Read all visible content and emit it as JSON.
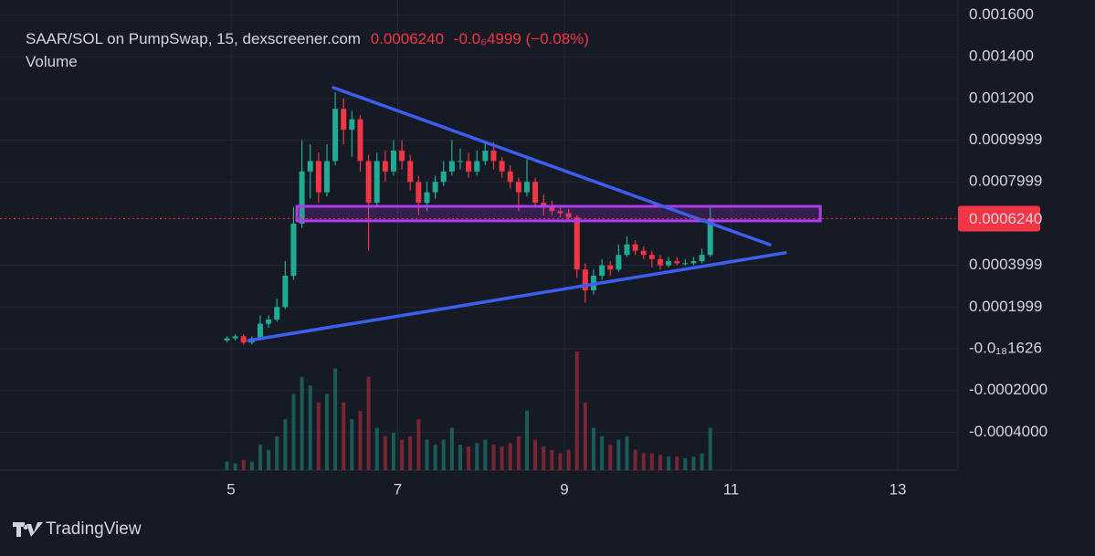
{
  "chart_data": {
    "type": "candlestick",
    "title": "SAAR/SOL on PumpSwap, 15, dexscreener.com",
    "change": "-0.0₆4999 (−0.08%)",
    "volume_title": "Volume",
    "brand": "TradingView",
    "last_price": {
      "value": 0.000624,
      "label": "0.0006240"
    },
    "up_color": "#22ab94",
    "down_color": "#f23645",
    "grid": true,
    "xlim": [
      2.227,
      13.712
    ],
    "xticks": [
      5,
      7,
      9,
      11,
      13
    ],
    "ylim": [
      -0.000582,
      0.001672
    ],
    "yticks": [
      {
        "value": 0.0016,
        "label": "0.001600"
      },
      {
        "value": 0.0014,
        "label": "0.001400"
      },
      {
        "value": 0.0012,
        "label": "0.001200"
      },
      0.0009999,
      0.0007999,
      0.0003999,
      0.0001999,
      {
        "value": -1.626e-19,
        "label": "-0.0₁₈1626"
      },
      {
        "value": -0.0002,
        "label": "-0.0002000"
      },
      {
        "value": -0.0004,
        "label": "-0.0004000"
      }
    ],
    "x": [
      4.95,
      5.05,
      5.15,
      5.25,
      5.35,
      5.45,
      5.55,
      5.65,
      5.75,
      5.85,
      5.95,
      6.05,
      6.15,
      6.25,
      6.35,
      6.45,
      6.55,
      6.65,
      6.75,
      6.85,
      6.95,
      7.05,
      7.15,
      7.25,
      7.35,
      7.45,
      7.55,
      7.65,
      7.75,
      7.85,
      7.95,
      8.05,
      8.15,
      8.25,
      8.35,
      8.45,
      8.55,
      8.65,
      8.75,
      8.85,
      8.95,
      9.05,
      9.15,
      9.25,
      9.35,
      9.45,
      9.55,
      9.65,
      9.75,
      9.85,
      9.95,
      10.05,
      10.15,
      10.25,
      10.35,
      10.45,
      10.55,
      10.65,
      10.75
    ],
    "open": [
      4e-05,
      5e-05,
      6e-05,
      3e-05,
      5e-05,
      0.00012,
      0.00014,
      0.0002,
      0.00035,
      0.0006,
      0.00085,
      0.0009,
      0.00075,
      0.0009,
      0.00115,
      0.00105,
      0.0011,
      0.0009,
      0.0007,
      0.0009,
      0.00085,
      0.00095,
      0.0009,
      0.0008,
      0.0007,
      0.00075,
      0.0008,
      0.00085,
      0.0009,
      0.0009,
      0.00085,
      0.0009,
      0.00095,
      0.0009,
      0.00085,
      0.0008,
      0.00075,
      0.0008,
      0.0007,
      0.00068,
      0.00066,
      0.00065,
      0.00063,
      0.00038,
      0.00028,
      0.00035,
      0.0004,
      0.00038,
      0.00045,
      0.0005,
      0.00047,
      0.00045,
      0.00043,
      0.0004,
      0.00042,
      0.00041,
      0.00041,
      0.00042,
      0.00045
    ],
    "high": [
      6e-05,
      7e-05,
      7e-05,
      6e-05,
      0.00016,
      0.00016,
      0.00024,
      0.00042,
      0.00068,
      0.001,
      0.00098,
      0.00094,
      0.00098,
      0.00123,
      0.0012,
      0.00114,
      0.00112,
      0.00093,
      0.00094,
      0.00095,
      0.001,
      0.001,
      0.00093,
      0.00083,
      0.0008,
      0.00083,
      0.0009,
      0.001,
      0.00096,
      0.00094,
      0.00095,
      0.00099,
      0.00099,
      0.00092,
      0.00088,
      0.00082,
      0.00091,
      0.00082,
      0.00074,
      0.00071,
      0.00069,
      0.00067,
      0.00064,
      0.00041,
      0.00038,
      0.00043,
      0.00042,
      0.0005,
      0.00054,
      0.00052,
      0.00049,
      0.00047,
      0.00045,
      0.00044,
      0.00044,
      0.00043,
      0.00044,
      0.00048,
      0.00069
    ],
    "low": [
      3e-05,
      4e-05,
      2e-05,
      2e-05,
      4e-05,
      0.0001,
      0.00013,
      0.00019,
      0.00033,
      0.00058,
      0.00072,
      0.0007,
      0.00073,
      0.00088,
      0.00098,
      0.00092,
      0.00085,
      0.00047,
      0.00068,
      0.0008,
      0.00083,
      0.00086,
      0.00076,
      0.00064,
      0.00066,
      0.00072,
      0.00078,
      0.00083,
      0.00086,
      0.00082,
      0.00083,
      0.00088,
      0.00086,
      0.00082,
      0.00077,
      0.00066,
      0.00073,
      0.00068,
      0.00064,
      0.00064,
      0.00063,
      0.00061,
      0.00034,
      0.00022,
      0.00026,
      0.00033,
      0.00035,
      0.00037,
      0.00044,
      0.00045,
      0.00043,
      0.00039,
      0.00038,
      0.00039,
      0.0004,
      0.0004,
      0.0004,
      0.00041,
      0.00044
    ],
    "close": [
      5e-05,
      6e-05,
      3e-05,
      5e-05,
      0.00012,
      0.00014,
      0.0002,
      0.00035,
      0.0006,
      0.00085,
      0.0009,
      0.00075,
      0.0009,
      0.00115,
      0.00105,
      0.0011,
      0.0009,
      0.0007,
      0.0009,
      0.00085,
      0.00095,
      0.0009,
      0.0008,
      0.0007,
      0.00075,
      0.0008,
      0.00085,
      0.0009,
      0.0009,
      0.00085,
      0.0009,
      0.00095,
      0.0009,
      0.00085,
      0.0008,
      0.00075,
      0.0008,
      0.0007,
      0.00068,
      0.00066,
      0.00065,
      0.00063,
      0.00038,
      0.00028,
      0.00035,
      0.0004,
      0.00038,
      0.00045,
      0.0005,
      0.00047,
      0.00045,
      0.00043,
      0.0004,
      0.00042,
      0.00041,
      0.00041,
      0.00042,
      0.00045,
      0.000624
    ],
    "volume": [
      5,
      4,
      6,
      5,
      15,
      12,
      20,
      30,
      45,
      55,
      50,
      40,
      45,
      60,
      40,
      30,
      35,
      55,
      25,
      20,
      22,
      18,
      20,
      30,
      18,
      15,
      18,
      25,
      15,
      14,
      16,
      18,
      15,
      14,
      16,
      20,
      35,
      18,
      14,
      12,
      10,
      12,
      70,
      40,
      25,
      20,
      15,
      18,
      20,
      12,
      10,
      10,
      9,
      8,
      8,
      7,
      8,
      10,
      25
    ],
    "lines": [
      {
        "x": [
          6.227,
          11.466
        ],
        "y": [
          0.001252,
          0.000499
        ],
        "color": "#3d5ff0"
      },
      {
        "x": [
          5.21,
          11.65
        ],
        "y": [
          3.94e-05,
          0.00046
        ],
        "color": "#3d5ff0"
      }
    ],
    "zones": [
      {
        "x": [
          5.79,
          12.07
        ],
        "y": [
          0.000613,
          0.000683
        ],
        "color": "#b03cf0"
      }
    ]
  }
}
